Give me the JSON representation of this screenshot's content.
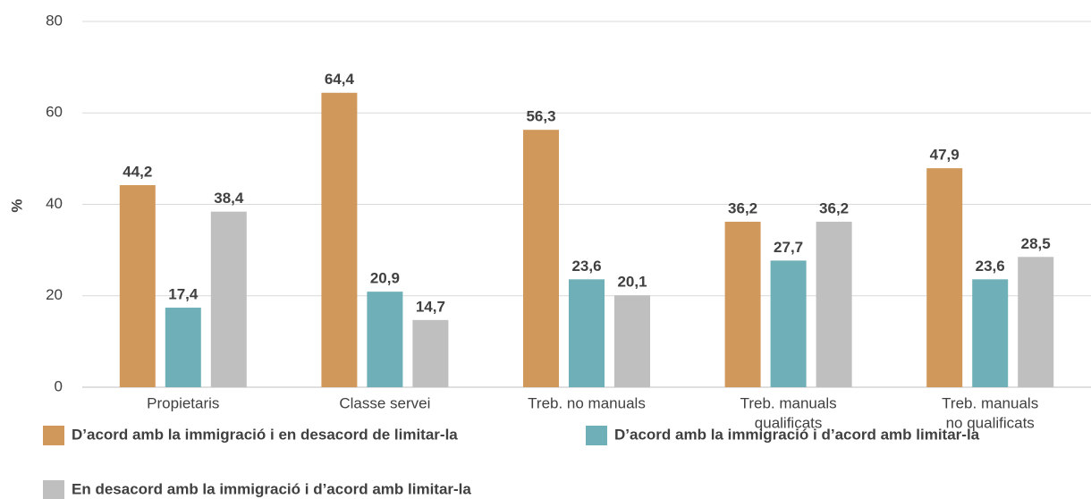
{
  "chart_data": {
    "type": "bar",
    "ylabel": "%",
    "categories": [
      [
        "Propietaris"
      ],
      [
        "Classe servei"
      ],
      [
        "Treb. no manuals"
      ],
      [
        "Treb. manuals",
        "qualificats"
      ],
      [
        "Treb. manuals",
        "no qualificats"
      ]
    ],
    "series": [
      {
        "name": "D’acord amb la immigració i en desacord de limitar-la",
        "color": "#d0995b",
        "values": [
          44.2,
          64.4,
          56.3,
          36.2,
          47.9
        ],
        "value_labels": [
          "44,2",
          "64,4",
          "56,3",
          "36,2",
          "47,9"
        ]
      },
      {
        "name": "D’acord amb la immigració i d’acord amb limitar-la",
        "color": "#6fb0b8",
        "values": [
          17.4,
          20.9,
          23.6,
          27.7,
          23.6
        ],
        "value_labels": [
          "17,4",
          "20,9",
          "23,6",
          "27,7",
          "23,6"
        ]
      },
      {
        "name": "En desacord amb la immigració i d’acord amb limitar-la",
        "color": "#bfbfbf",
        "values": [
          38.4,
          14.7,
          20.1,
          36.2,
          28.5
        ],
        "value_labels": [
          "38,4",
          "14,7",
          "20,1",
          "36,2",
          "28,5"
        ]
      }
    ],
    "ylim": [
      0,
      80
    ],
    "yticks": [
      0,
      20,
      40,
      60,
      80
    ],
    "grid": true,
    "legend": "bottom"
  }
}
